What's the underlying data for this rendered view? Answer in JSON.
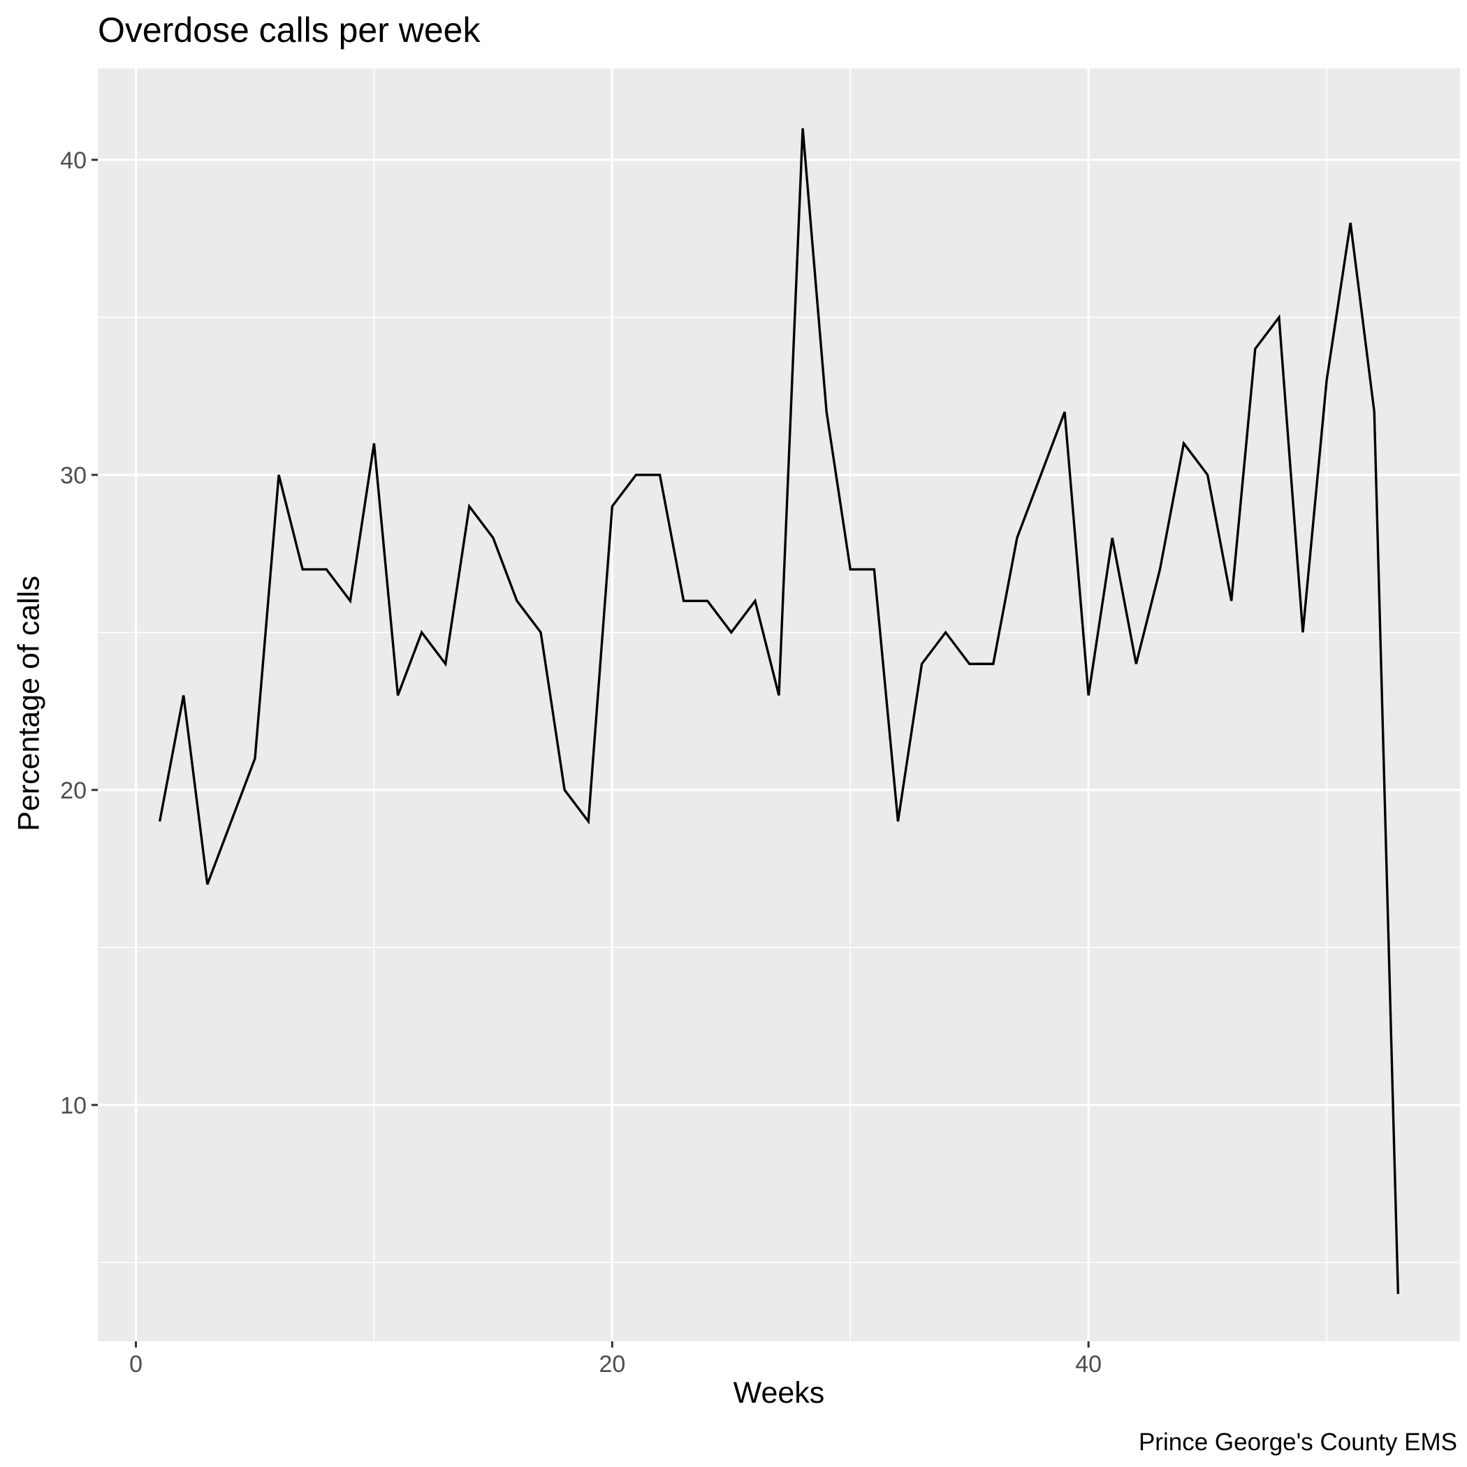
{
  "chart_data": {
    "type": "line",
    "title": "Overdose calls per week",
    "xlabel": "Weeks",
    "ylabel": "Percentage of calls",
    "caption": "Prince George's County EMS",
    "xlim": [
      -1.6,
      55.6
    ],
    "ylim": [
      2.5,
      42.9
    ],
    "x_ticks": [
      0,
      20,
      40
    ],
    "y_ticks": [
      10,
      20,
      30,
      40
    ],
    "grid": true,
    "legend": "none",
    "colors": {
      "panel": "#ebebeb",
      "grid": "#ffffff",
      "line": "#000000",
      "tick_text": "#4d4d4d"
    },
    "series": [
      {
        "x": [
          1,
          2,
          3,
          4,
          5,
          6,
          7,
          8,
          9,
          10,
          11,
          12,
          13,
          14,
          15,
          16,
          17,
          18,
          19,
          20,
          21,
          22,
          23,
          24,
          25,
          26,
          27,
          28,
          29,
          30,
          31,
          32,
          33,
          34,
          35,
          36,
          37,
          38,
          39,
          40,
          41,
          42,
          43,
          44,
          45,
          46,
          47,
          48,
          49,
          50,
          51,
          52,
          53
        ],
        "values": [
          19,
          23,
          17,
          19,
          21,
          30,
          27,
          27,
          26,
          31,
          23,
          25,
          24,
          29,
          28,
          26,
          25,
          20,
          19,
          29,
          30,
          30,
          26,
          26,
          25,
          26,
          23,
          41,
          32,
          27,
          27,
          19,
          24,
          25,
          24,
          24,
          28,
          30,
          32,
          23,
          28,
          24,
          27,
          31,
          30,
          26,
          34,
          35,
          25,
          33,
          38,
          32,
          4
        ]
      }
    ]
  }
}
